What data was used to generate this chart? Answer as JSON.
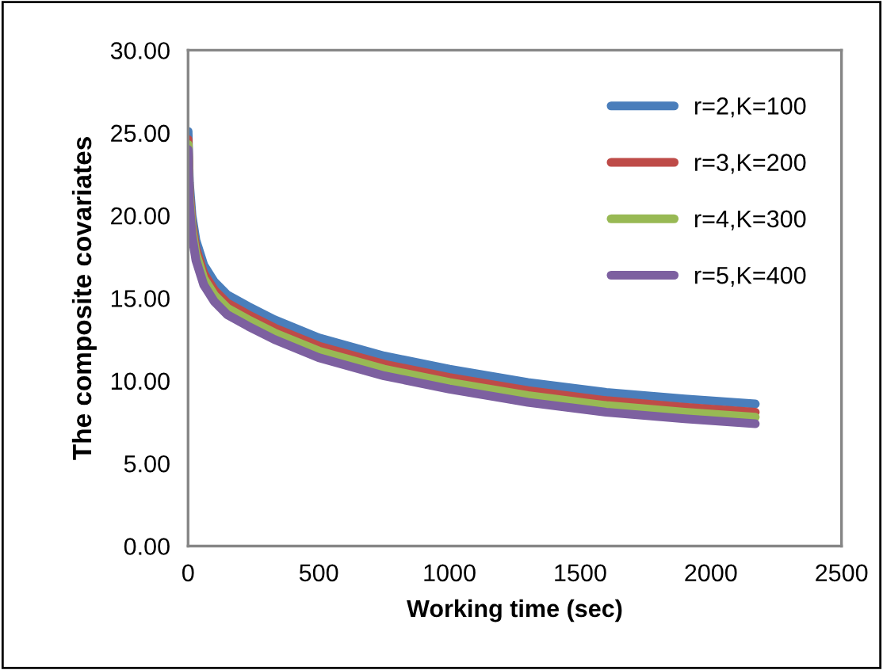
{
  "chart_data": {
    "type": "line",
    "xlabel": "Working time (sec)",
    "ylabel": "The composite covariates",
    "x": [
      0,
      5,
      15,
      30,
      60,
      100,
      150,
      230,
      330,
      500,
      750,
      1000,
      1300,
      1600,
      1900,
      2170
    ],
    "series": [
      {
        "name": "r=2,K=100",
        "color": "#4a7ebb",
        "values": [
          25.1,
          22.0,
          20.0,
          18.5,
          17.0,
          16.0,
          15.2,
          14.5,
          13.7,
          12.6,
          11.5,
          10.7,
          9.9,
          9.3,
          8.9,
          8.6
        ]
      },
      {
        "name": "r=3,K=200",
        "color": "#be4b48",
        "values": [
          24.6,
          21.5,
          19.5,
          18.0,
          16.5,
          15.5,
          14.7,
          14.0,
          13.2,
          12.1,
          11.0,
          10.2,
          9.4,
          8.8,
          8.4,
          8.1
        ]
      },
      {
        "name": "r=4,K=300",
        "color": "#98b954",
        "values": [
          24.3,
          21.2,
          19.2,
          17.7,
          16.2,
          15.2,
          14.4,
          13.7,
          12.9,
          11.8,
          10.7,
          9.9,
          9.1,
          8.5,
          8.1,
          7.8
        ]
      },
      {
        "name": "r=5,K=400",
        "color": "#7d60a0",
        "values": [
          24.0,
          20.8,
          18.8,
          17.3,
          15.8,
          14.8,
          14.0,
          13.3,
          12.5,
          11.4,
          10.3,
          9.5,
          8.7,
          8.1,
          7.7,
          7.4
        ]
      }
    ],
    "xlim": [
      0,
      2500
    ],
    "xticks": [
      0,
      500,
      1000,
      1500,
      2000,
      2500
    ],
    "ylim": [
      0,
      30
    ],
    "yticks": [
      {
        "value": 0,
        "label": "0.00"
      },
      {
        "value": 5,
        "label": "5.00"
      },
      {
        "value": 10,
        "label": "10.00"
      },
      {
        "value": 15,
        "label": "15.00"
      },
      {
        "value": 20,
        "label": "20.00"
      },
      {
        "value": 25,
        "label": "25.00"
      },
      {
        "value": 30,
        "label": "30.00"
      }
    ],
    "grid": false,
    "legend": "top right",
    "marker": "none",
    "line_style": "solid"
  }
}
